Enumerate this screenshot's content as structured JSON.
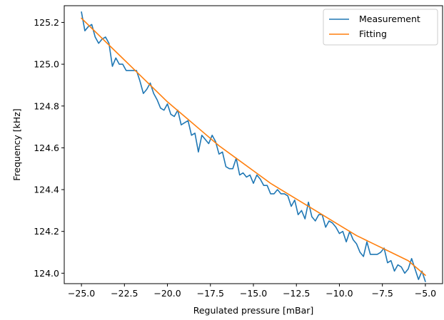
{
  "chart_data": {
    "type": "line",
    "xlabel": "Regulated pressure [mBar]",
    "ylabel": "Frequency [kHz]",
    "xlim": [
      -26.0,
      -4.0
    ],
    "ylim": [
      123.95,
      125.28
    ],
    "xticks": [
      -25.0,
      -22.5,
      -20.0,
      -17.5,
      -15.0,
      -12.5,
      -10.0,
      -7.5,
      -5.0
    ],
    "xtick_labels": [
      "−25.0",
      "−22.5",
      "−20.0",
      "−17.5",
      "−15.0",
      "−12.5",
      "−10.0",
      "−7.5",
      "−5.0"
    ],
    "yticks": [
      124.0,
      124.2,
      124.4,
      124.6,
      124.8,
      125.0,
      125.2
    ],
    "ytick_labels": [
      "124.0",
      "124.2",
      "124.4",
      "124.6",
      "124.8",
      "125.0",
      "125.2"
    ],
    "grid": false,
    "legend_position": "top-right",
    "series": [
      {
        "name": "Measurement",
        "color": "#1f77b4",
        "x": [
          -25.0,
          -24.8,
          -24.6,
          -24.4,
          -24.2,
          -24.0,
          -23.8,
          -23.6,
          -23.4,
          -23.2,
          -23.0,
          -22.8,
          -22.6,
          -22.4,
          -22.2,
          -22.0,
          -21.8,
          -21.6,
          -21.4,
          -21.2,
          -21.0,
          -20.8,
          -20.6,
          -20.4,
          -20.2,
          -20.0,
          -19.8,
          -19.6,
          -19.4,
          -19.2,
          -19.0,
          -18.8,
          -18.6,
          -18.4,
          -18.2,
          -18.0,
          -17.8,
          -17.6,
          -17.4,
          -17.2,
          -17.0,
          -16.8,
          -16.6,
          -16.4,
          -16.2,
          -16.0,
          -15.8,
          -15.6,
          -15.4,
          -15.2,
          -15.0,
          -14.8,
          -14.6,
          -14.4,
          -14.2,
          -14.0,
          -13.8,
          -13.6,
          -13.4,
          -13.2,
          -13.0,
          -12.8,
          -12.6,
          -12.4,
          -12.2,
          -12.0,
          -11.8,
          -11.6,
          -11.4,
          -11.2,
          -11.0,
          -10.8,
          -10.6,
          -10.4,
          -10.2,
          -10.0,
          -9.8,
          -9.6,
          -9.4,
          -9.2,
          -9.0,
          -8.8,
          -8.6,
          -8.4,
          -8.2,
          -8.0,
          -7.8,
          -7.6,
          -7.4,
          -7.2,
          -7.0,
          -6.8,
          -6.6,
          -6.4,
          -6.2,
          -6.0,
          -5.8,
          -5.6,
          -5.4,
          -5.2,
          -5.0
        ],
        "y": [
          125.25,
          125.16,
          125.18,
          125.19,
          125.13,
          125.1,
          125.12,
          125.13,
          125.1,
          124.99,
          125.03,
          125.0,
          125.0,
          124.97,
          124.97,
          124.97,
          124.97,
          124.92,
          124.86,
          124.88,
          124.91,
          124.86,
          124.83,
          124.79,
          124.78,
          124.81,
          124.76,
          124.75,
          124.78,
          124.71,
          124.72,
          124.73,
          124.66,
          124.67,
          124.58,
          124.66,
          124.64,
          124.62,
          124.66,
          124.63,
          124.57,
          124.58,
          124.51,
          124.5,
          124.5,
          124.55,
          124.47,
          124.48,
          124.46,
          124.47,
          124.43,
          124.47,
          124.45,
          124.42,
          124.42,
          124.38,
          124.38,
          124.4,
          124.38,
          124.38,
          124.37,
          124.32,
          124.35,
          124.28,
          124.3,
          124.26,
          124.34,
          124.27,
          124.25,
          124.28,
          124.28,
          124.22,
          124.25,
          124.24,
          124.22,
          124.19,
          124.2,
          124.15,
          124.2,
          124.16,
          124.14,
          124.1,
          124.08,
          124.15,
          124.09,
          124.09,
          124.09,
          124.1,
          124.12,
          124.05,
          124.06,
          124.01,
          124.04,
          124.03,
          124.0,
          124.02,
          124.07,
          124.02,
          123.97,
          124.01,
          123.96
        ]
      },
      {
        "name": "Fitting",
        "color": "#ff7f0e",
        "x": [
          -25.0,
          -24.0,
          -23.0,
          -22.0,
          -21.0,
          -20.0,
          -19.0,
          -18.0,
          -17.0,
          -16.0,
          -15.0,
          -14.0,
          -13.0,
          -12.0,
          -11.0,
          -10.0,
          -9.0,
          -8.0,
          -7.0,
          -6.0,
          -5.0
        ],
        "y": [
          125.22,
          125.14,
          125.06,
          124.98,
          124.9,
          124.82,
          124.75,
          124.68,
          124.61,
          124.55,
          124.49,
          124.43,
          124.38,
          124.33,
          124.28,
          124.23,
          124.18,
          124.14,
          124.1,
          124.06,
          123.99
        ]
      }
    ]
  }
}
